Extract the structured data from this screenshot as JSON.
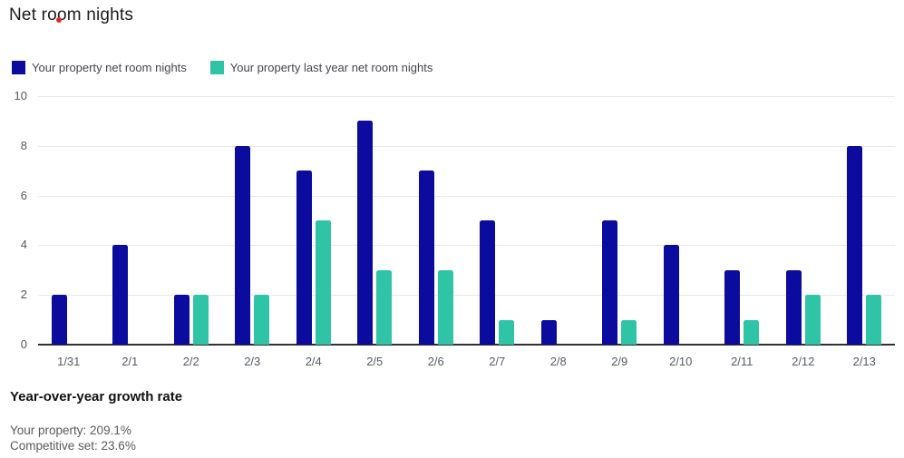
{
  "title": "Net room nights",
  "cursor_dot_color": "#d92b2b",
  "legend": {
    "items": [
      {
        "label": "Your property net room nights",
        "color": "#0b0b9e"
      },
      {
        "label": "Your property last year net room nights",
        "color": "#2ec4a5"
      }
    ]
  },
  "chart_data": {
    "type": "bar",
    "title": "Net room nights",
    "categories": [
      "1/31",
      "2/1",
      "2/2",
      "2/3",
      "2/4",
      "2/5",
      "2/6",
      "2/7",
      "2/8",
      "2/9",
      "2/10",
      "2/11",
      "2/12",
      "2/13"
    ],
    "series": [
      {
        "name": "Your property net room nights",
        "color": "#0b0b9e",
        "values": [
          2,
          4,
          2,
          8,
          7,
          9,
          7,
          5,
          1,
          5,
          4,
          3,
          3,
          8
        ]
      },
      {
        "name": "Your property last year net room nights",
        "color": "#2ec4a5",
        "values": [
          0,
          0,
          2,
          2,
          5,
          3,
          3,
          1,
          0,
          1,
          0,
          1,
          2,
          2
        ]
      }
    ],
    "xlabel": "",
    "ylabel": "",
    "ylim": [
      0,
      10
    ],
    "yticks": [
      0,
      2,
      4,
      6,
      8,
      10
    ],
    "grid": true,
    "legend_position": "top-left"
  },
  "growth": {
    "heading": "Year-over-year growth rate",
    "lines": [
      {
        "label": "Your property:",
        "value": "209.1%"
      },
      {
        "label": "Competitive set:",
        "value": "23.6%"
      }
    ]
  }
}
